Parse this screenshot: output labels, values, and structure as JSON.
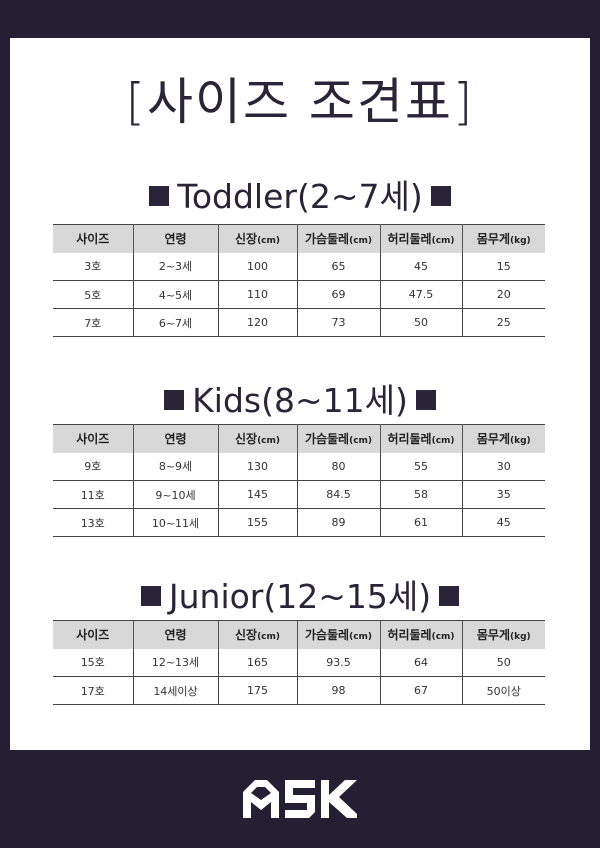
{
  "title": "[사이즈 조견표]",
  "headers": [
    "사이즈",
    "연령",
    "신장",
    "가슴둘레",
    "허리둘레",
    "몸무게"
  ],
  "units": [
    "",
    "",
    "(cm)",
    "(cm)",
    "(cm)",
    "(kg)"
  ],
  "sections": [
    {
      "title": "Toddler(2~7세)",
      "rows": [
        [
          "3호",
          "2~3세",
          "100",
          "65",
          "45",
          "15"
        ],
        [
          "5호",
          "4~5세",
          "110",
          "69",
          "47.5",
          "20"
        ],
        [
          "7호",
          "6~7세",
          "120",
          "73",
          "50",
          "25"
        ]
      ]
    },
    {
      "title": "Kids(8~11세)",
      "rows": [
        [
          "9호",
          "8~9세",
          "130",
          "80",
          "55",
          "30"
        ],
        [
          "11호",
          "9~10세",
          "145",
          "84.5",
          "58",
          "35"
        ],
        [
          "13호",
          "10~11세",
          "155",
          "89",
          "61",
          "45"
        ]
      ]
    },
    {
      "title": "Junior(12~15세)",
      "rows": [
        [
          "15호",
          "12~13세",
          "165",
          "93.5",
          "64",
          "50"
        ],
        [
          "17호",
          "14세이상",
          "175",
          "98",
          "67",
          "50이상"
        ]
      ]
    }
  ],
  "logo": "ASK",
  "colors": {
    "background": "#251f33",
    "header": "#d8d8d8"
  }
}
